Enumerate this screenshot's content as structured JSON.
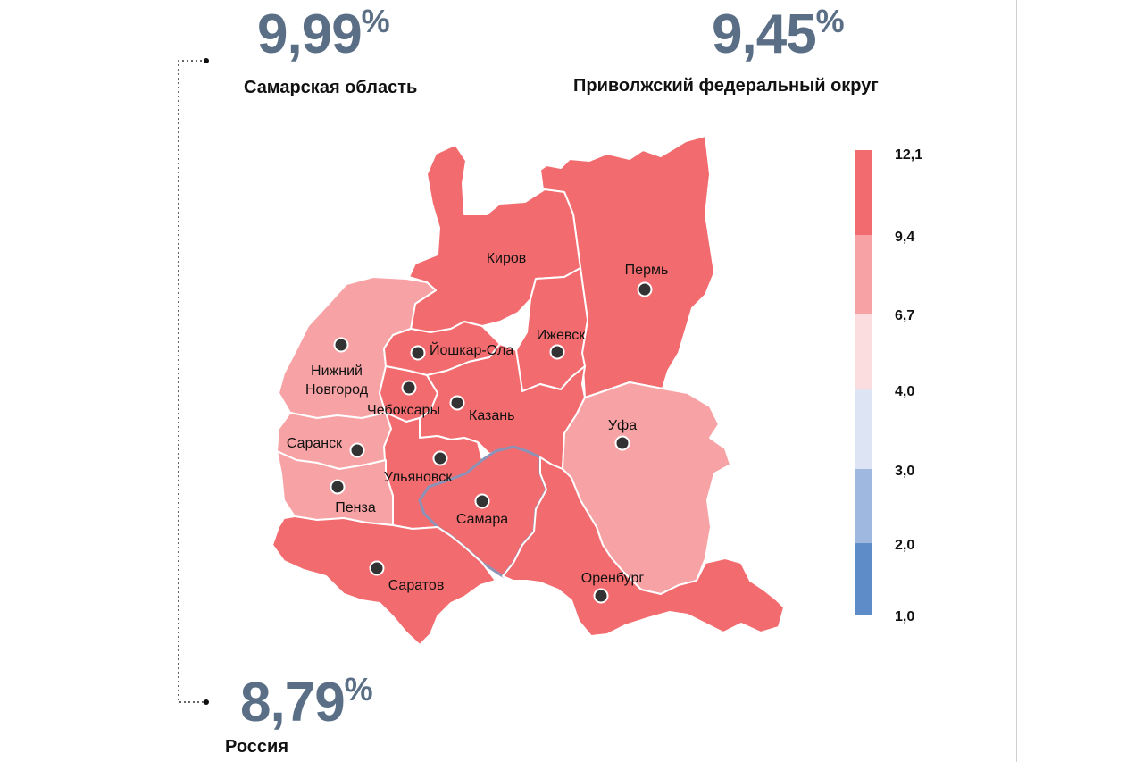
{
  "stats": {
    "region": {
      "value": "9,99",
      "unit": "%",
      "label": "Самарская область"
    },
    "district": {
      "value": "9,45",
      "unit": "%",
      "label": "Приволжский федеральный округ"
    },
    "country": {
      "value": "8,79",
      "unit": "%",
      "label": "Россия"
    }
  },
  "cities": [
    {
      "name": "Киров"
    },
    {
      "name": "Пермь"
    },
    {
      "name": "Ижевск"
    },
    {
      "name": "Йошкар-Ола"
    },
    {
      "name": "Нижний Новгород"
    },
    {
      "name": "Чебоксары"
    },
    {
      "name": "Казань"
    },
    {
      "name": "Уфа"
    },
    {
      "name": "Саранск"
    },
    {
      "name": "Ульяновск"
    },
    {
      "name": "Пенза"
    },
    {
      "name": "Самара"
    },
    {
      "name": "Саратов"
    },
    {
      "name": "Оренбург"
    }
  ],
  "legend": {
    "ticks": [
      "12,1",
      "9,4",
      "6,7",
      "4,0",
      "3,0",
      "2,0",
      "1,0"
    ],
    "colors": [
      "#f26b6e",
      "#f7a2a4",
      "#fbdde0",
      "#dde4f3",
      "#9fb8df",
      "#5d8cc9"
    ]
  },
  "colors": {
    "high": "#f26b6e",
    "medium": "#f7a2a4",
    "stat_value": "#5a6f86"
  }
}
